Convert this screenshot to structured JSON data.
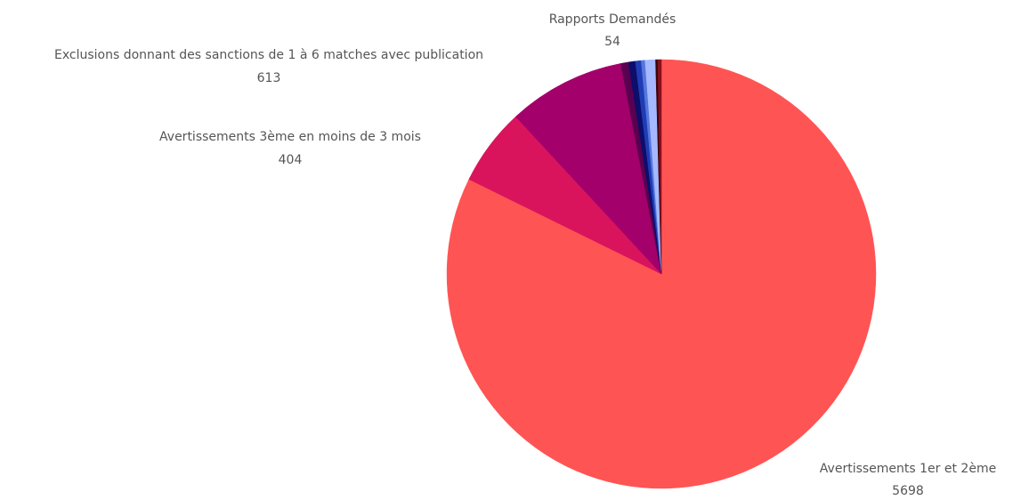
{
  "chart_data": {
    "type": "pie",
    "start_angle_deg": 0,
    "direction": "clockwise",
    "slices": [
      {
        "label": "Avertissements 1er et 2ème",
        "value": 5698,
        "color": "#ff5454"
      },
      {
        "label": "Avertissements 3ème en moins de 3 mois",
        "value": 404,
        "color": "#d9145d"
      },
      {
        "label": "Exclusions donnant des sanctions de 1 à 6 matches avec publication",
        "value": 613,
        "color": "#a3006b"
      },
      {
        "label": "",
        "value": 40,
        "color": "#5a0050"
      },
      {
        "label": "",
        "value": 36,
        "color": "#0d0d6b"
      },
      {
        "label": "",
        "value": 30,
        "color": "#1f3cb4"
      },
      {
        "label": "",
        "value": 20,
        "color": "#5577dd"
      },
      {
        "label": "Rapports Demandés",
        "value": 54,
        "color": "#a6b8ff"
      },
      {
        "label": "",
        "value": 12,
        "color": "#3a0606"
      },
      {
        "label": "",
        "value": 18,
        "color": "#8a0f1e"
      }
    ]
  }
}
